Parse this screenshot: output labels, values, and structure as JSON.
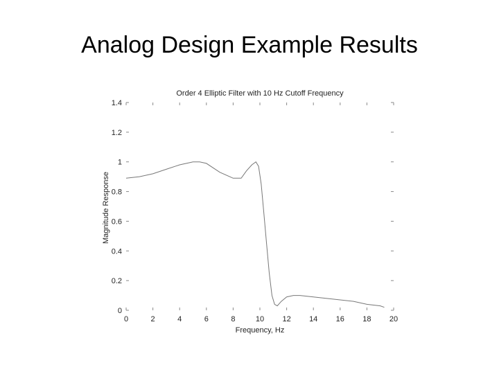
{
  "slide": {
    "title": "Analog Design Example Results"
  },
  "chart_data": {
    "type": "line",
    "title": "Order 4 Elliptic Filter with 10 Hz Cutoff Frequency",
    "xlabel": "Frequency, Hz",
    "ylabel": "Magnitude Response",
    "xlim": [
      0,
      20
    ],
    "ylim": [
      0,
      1.4
    ],
    "x_ticks": [
      0,
      2,
      4,
      6,
      8,
      10,
      12,
      14,
      16,
      18,
      20
    ],
    "y_ticks": [
      0,
      0.2,
      0.4,
      0.6,
      0.8,
      1,
      1.2,
      1.4
    ],
    "x_tick_labels": [
      "0",
      "2",
      "4",
      "6",
      "8",
      "10",
      "12",
      "14",
      "16",
      "18",
      "20"
    ],
    "y_tick_labels": [
      "0",
      "0.2",
      "0.4",
      "0.6",
      "0.8",
      "1",
      "1.2",
      "1.4"
    ],
    "grid": false,
    "series": [
      {
        "color": "#777777",
        "x": [
          0,
          1,
          2,
          3,
          4,
          5,
          5.5,
          6,
          7,
          8,
          8.6,
          9,
          9.4,
          9.7,
          9.9,
          10.1,
          10.3,
          10.5,
          10.7,
          10.9,
          11.1,
          11.3,
          11.6,
          12,
          12.5,
          13,
          14,
          15,
          16,
          17,
          18,
          19,
          19.3
        ],
        "y": [
          0.89,
          0.9,
          0.92,
          0.95,
          0.98,
          1.0,
          1.0,
          0.99,
          0.93,
          0.89,
          0.89,
          0.94,
          0.98,
          1.0,
          0.97,
          0.85,
          0.65,
          0.45,
          0.25,
          0.1,
          0.04,
          0.03,
          0.06,
          0.09,
          0.1,
          0.1,
          0.09,
          0.08,
          0.07,
          0.06,
          0.04,
          0.03,
          0.02
        ]
      }
    ]
  }
}
